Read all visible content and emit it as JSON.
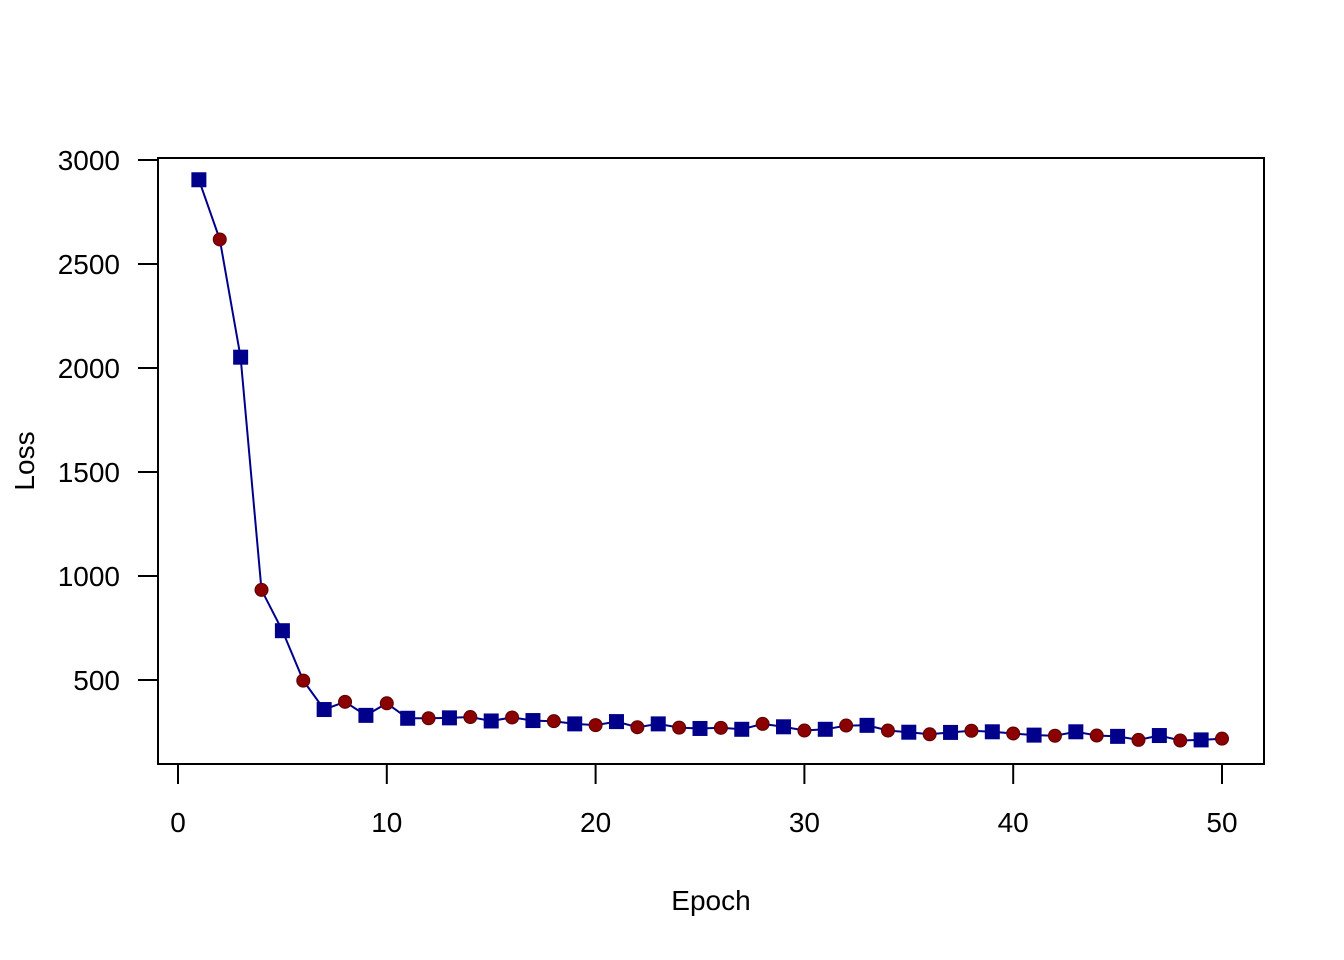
{
  "chart_data": {
    "type": "line",
    "title": "",
    "xlabel": "Epoch",
    "ylabel": "Loss",
    "xlim": [
      0,
      50
    ],
    "ylim": [
      100,
      3000
    ],
    "x_ticks": [
      0,
      10,
      20,
      30,
      40,
      50
    ],
    "y_ticks": [
      500,
      1000,
      1500,
      2000,
      2500,
      3000
    ],
    "grid": false,
    "legend": "none",
    "line_color": "#00008B",
    "marker_colors": [
      "#00008B",
      "#8B0000"
    ],
    "marker_pattern": "alternating square and circle",
    "series": [
      {
        "x": [
          1,
          2,
          3,
          4,
          5,
          6,
          7,
          8,
          9,
          10,
          11,
          12,
          13,
          14,
          15,
          16,
          17,
          18,
          19,
          20,
          21,
          22,
          23,
          24,
          25,
          26,
          27,
          28,
          29,
          30,
          31,
          32,
          33,
          34,
          35,
          36,
          37,
          38,
          39,
          40,
          41,
          42,
          43,
          44,
          45,
          46,
          47,
          48,
          49,
          50
        ],
        "values": [
          2905,
          2618,
          2052,
          933,
          737,
          497,
          358,
          395,
          330,
          388,
          316,
          316,
          318,
          322,
          303,
          320,
          305,
          302,
          289,
          283,
          300,
          273,
          289,
          271,
          267,
          270,
          263,
          289,
          275,
          257,
          263,
          281,
          282,
          257,
          249,
          239,
          248,
          256,
          251,
          243,
          235,
          232,
          251,
          233,
          229,
          212,
          233,
          209,
          212,
          218
        ]
      }
    ]
  }
}
